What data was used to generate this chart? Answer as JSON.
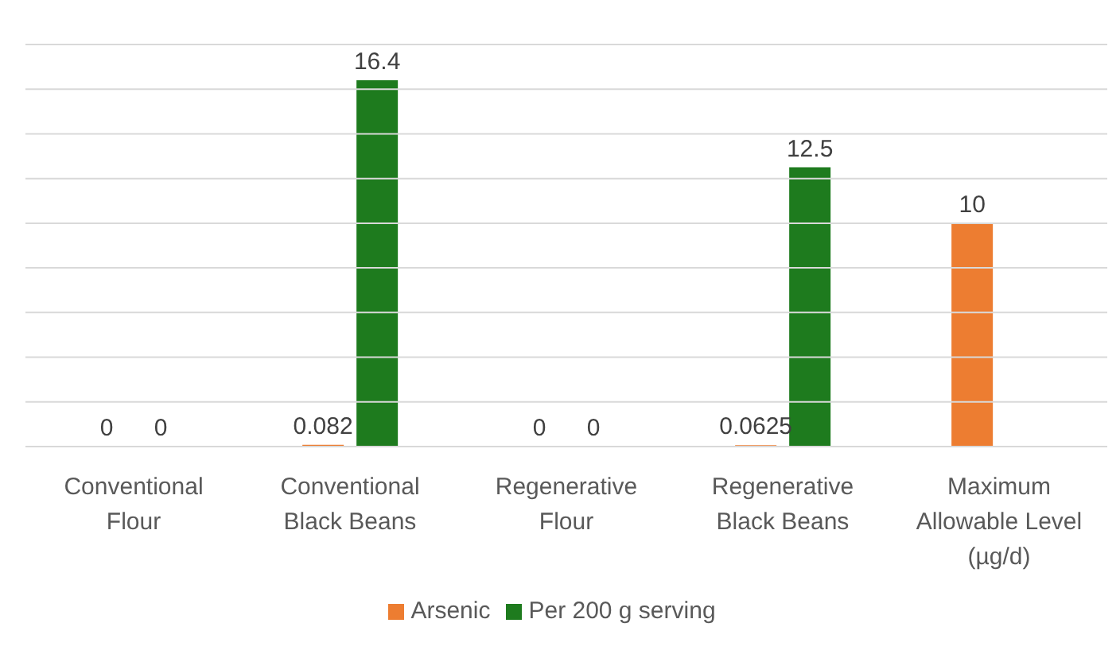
{
  "chart_data": {
    "type": "bar",
    "categories": [
      "Conventional Flour",
      "Conventional Black Beans",
      "Regenerative Flour",
      "Regenerative Black Beans",
      "Maximum Allowable Level (µg/d)"
    ],
    "series": [
      {
        "name": "Arsenic",
        "color": "#ed7d31",
        "values": [
          0,
          0.082,
          0,
          0.0625,
          10
        ]
      },
      {
        "name": "Per 200 g serving",
        "color": "#1e7b1e",
        "values": [
          0,
          16.4,
          0,
          12.5,
          null
        ]
      }
    ],
    "ylim": [
      0,
      18
    ],
    "yticks": [
      {
        "value": 0,
        "label": null
      },
      {
        "value": 2,
        "label": null
      },
      {
        "value": 4,
        "label": null
      },
      {
        "value": 6,
        "label": null
      },
      {
        "value": 8,
        "label": null
      },
      {
        "value": 10,
        "label": null
      },
      {
        "value": 12,
        "label": null
      },
      {
        "value": 14,
        "label": null
      },
      {
        "value": 16,
        "label": null
      },
      {
        "value": 18,
        "label": null
      }
    ],
    "tick_labels": "x",
    "grid": "y",
    "legend": "bottom",
    "data_labels": true
  }
}
